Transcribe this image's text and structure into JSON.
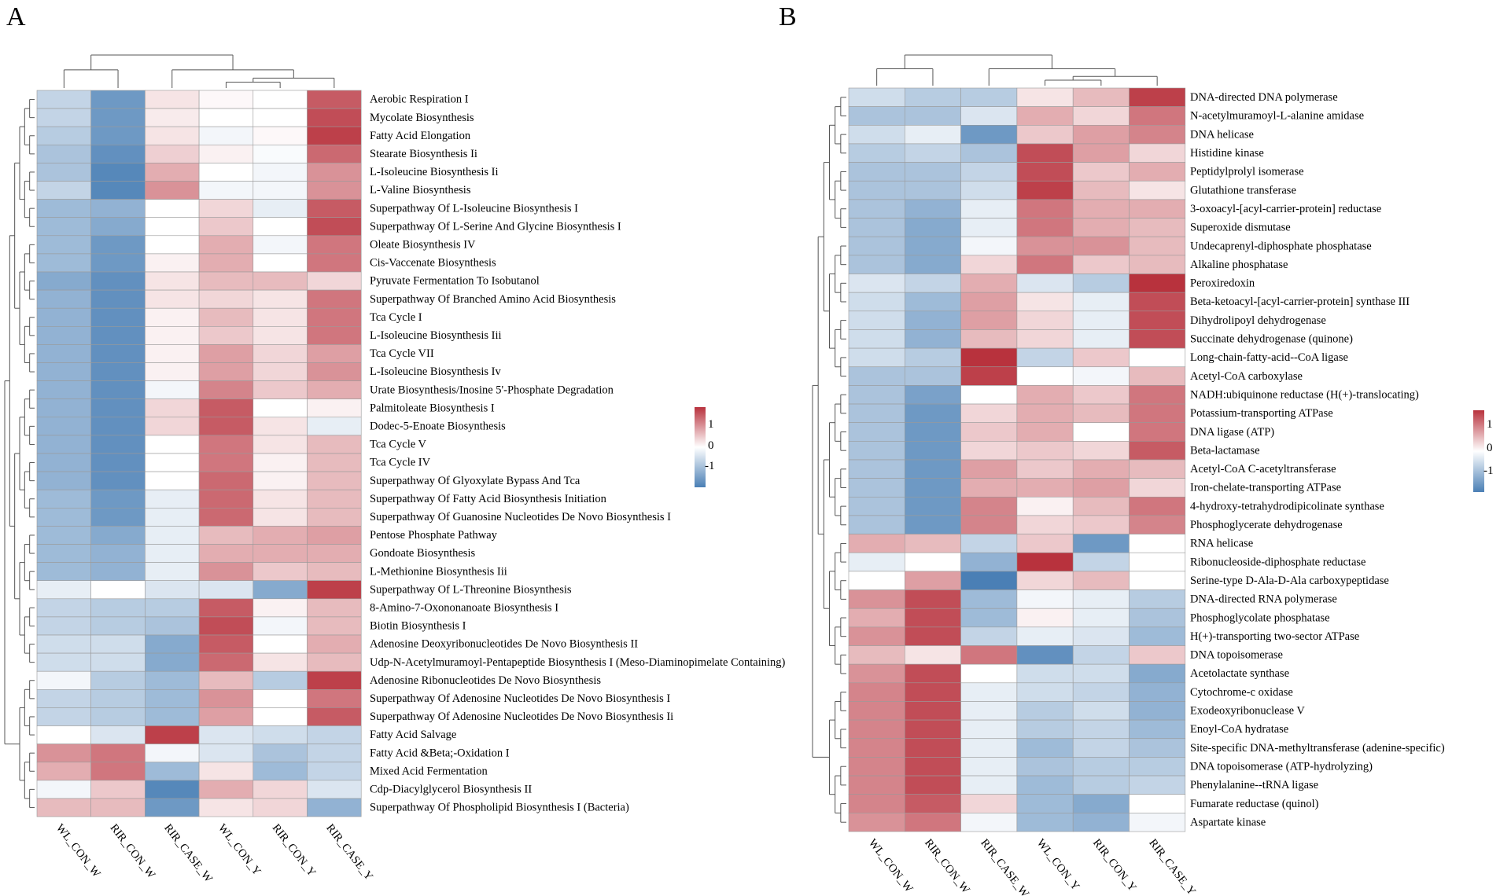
{
  "figure": {
    "panels": [
      "A",
      "B"
    ],
    "colormap": {
      "low": "#4a7fb5",
      "mid": "#ffffff",
      "high": "#b8323d"
    },
    "legend_ticks": [
      "1",
      "0",
      "-1"
    ]
  },
  "chart_data": [
    {
      "type": "heatmap",
      "panel": "A",
      "columns": [
        "WL_CON_W",
        "RIR_CON_W",
        "RIR_CASE_W",
        "WL_CON_Y",
        "RIR_CON_Y",
        "RIR_CASE_Y"
      ],
      "color_range": [
        -1.5,
        1.5
      ],
      "rows": [
        "Aerobic Respiration I",
        "Mycolate Biosynthesis",
        "Fatty Acid Elongation",
        "Stearate Biosynthesis Ii",
        "L-Isoleucine Biosynthesis Ii",
        "L-Valine Biosynthesis",
        "Superpathway Of L-Isoleucine Biosynthesis I",
        "Superpathway Of L-Serine And Glycine Biosynthesis I",
        "Oleate Biosynthesis IV",
        "Cis-Vaccenate Biosynthesis",
        "Pyruvate Fermentation To Isobutanol",
        "Superpathway Of Branched Amino Acid Biosynthesis",
        "Tca Cycle I",
        "L-Isoleucine Biosynthesis Iii",
        "Tca Cycle VII",
        "L-Isoleucine Biosynthesis Iv",
        "Urate Biosynthesis/Inosine 5'-Phosphate Degradation",
        "Palmitoleate Biosynthesis I",
        "Dodec-5-Enoate Biosynthesis",
        "Tca Cycle V",
        "Tca Cycle IV",
        "Superpathway Of Glyoxylate Bypass And Tca",
        "Superpathway Of Fatty Acid Biosynthesis Initiation",
        "Superpathway Of Guanosine Nucleotides De Novo Biosynthesis I",
        "Pentose Phosphate Pathway",
        "Gondoate Biosynthesis",
        "L-Methionine Biosynthesis Iii",
        "Superpathway Of L-Threonine Biosynthesis",
        "8-Amino-7-Oxononanoate Biosynthesis I",
        "Biotin Biosynthesis I",
        "Adenosine Deoxyribonucleotides De Novo Biosynthesis II",
        "Udp-N-Acetylmuramoyl-Pentapeptide Biosynthesis I (Meso-Diaminopimelate Containing)",
        "Adenosine Ribonucleotides De Novo Biosynthesis",
        "Superpathway Of Adenosine Nucleotides De Novo Biosynthesis I",
        "Superpathway Of Adenosine Nucleotides De Novo Biosynthesis Ii",
        "Fatty Acid Salvage",
        "Fatty Acid &Beta;-Oxidation I",
        "Mixed Acid Fermentation",
        "Cdp-Diacylglycerol Biosynthesis II",
        "Superpathway Of Phospholipid Biosynthesis I (Bacteria)"
      ],
      "values": [
        [
          -0.5,
          -1.2,
          0.2,
          0.05,
          0.0,
          1.2
        ],
        [
          -0.5,
          -1.2,
          0.15,
          0.0,
          0.0,
          1.3
        ],
        [
          -0.6,
          -1.2,
          0.2,
          -0.1,
          0.05,
          1.4
        ],
        [
          -0.7,
          -1.3,
          0.35,
          0.1,
          -0.05,
          1.1
        ],
        [
          -0.7,
          -1.4,
          0.6,
          0.0,
          -0.1,
          0.8
        ],
        [
          -0.5,
          -1.4,
          0.8,
          -0.1,
          -0.1,
          0.8
        ],
        [
          -0.8,
          -0.9,
          0.0,
          0.3,
          -0.2,
          1.2
        ],
        [
          -0.8,
          -1.0,
          0.0,
          0.4,
          0.0,
          1.3
        ],
        [
          -0.8,
          -1.2,
          0.0,
          0.6,
          -0.1,
          1.0
        ],
        [
          -0.8,
          -1.2,
          0.1,
          0.6,
          0.0,
          1.0
        ],
        [
          -1.0,
          -1.3,
          0.2,
          0.5,
          0.5,
          0.3
        ],
        [
          -0.9,
          -1.3,
          0.2,
          0.3,
          0.2,
          1.0
        ],
        [
          -0.9,
          -1.3,
          0.1,
          0.5,
          0.2,
          1.0
        ],
        [
          -0.9,
          -1.3,
          0.1,
          0.4,
          0.2,
          1.0
        ],
        [
          -0.9,
          -1.3,
          0.1,
          0.7,
          0.3,
          0.7
        ],
        [
          -0.9,
          -1.3,
          0.1,
          0.7,
          0.3,
          0.8
        ],
        [
          -0.9,
          -1.3,
          -0.1,
          0.9,
          0.4,
          0.6
        ],
        [
          -0.9,
          -1.3,
          0.3,
          1.2,
          0.0,
          0.1
        ],
        [
          -0.9,
          -1.3,
          0.3,
          1.2,
          0.2,
          -0.2
        ],
        [
          -0.9,
          -1.3,
          0.0,
          1.0,
          0.2,
          0.5
        ],
        [
          -0.9,
          -1.3,
          0.0,
          1.0,
          0.1,
          0.5
        ],
        [
          -0.9,
          -1.3,
          0.0,
          1.1,
          0.1,
          0.5
        ],
        [
          -0.8,
          -1.2,
          -0.2,
          1.1,
          0.2,
          0.5
        ],
        [
          -0.8,
          -1.2,
          -0.2,
          1.1,
          0.2,
          0.5
        ],
        [
          -0.8,
          -1.0,
          -0.2,
          0.5,
          0.6,
          0.7
        ],
        [
          -0.8,
          -0.9,
          -0.2,
          0.6,
          0.6,
          0.6
        ],
        [
          -0.8,
          -0.9,
          -0.2,
          0.8,
          0.4,
          0.5
        ],
        [
          -0.2,
          0.0,
          -0.3,
          -0.3,
          -1.0,
          1.4
        ],
        [
          -0.5,
          -0.6,
          -0.6,
          1.2,
          0.1,
          0.5
        ],
        [
          -0.5,
          -0.6,
          -0.7,
          1.3,
          -0.1,
          0.5
        ],
        [
          -0.4,
          -0.4,
          -1.0,
          1.2,
          0.0,
          0.6
        ],
        [
          -0.4,
          -0.4,
          -1.0,
          1.1,
          0.2,
          0.5
        ],
        [
          -0.1,
          -0.6,
          -0.8,
          0.5,
          -0.6,
          1.4
        ],
        [
          -0.5,
          -0.6,
          -0.8,
          0.8,
          0.0,
          1.0
        ],
        [
          -0.5,
          -0.6,
          -0.8,
          0.7,
          0.0,
          1.2
        ],
        [
          0.0,
          -0.3,
          1.4,
          -0.3,
          -0.4,
          -0.5
        ],
        [
          0.8,
          1.0,
          -0.1,
          -0.3,
          -0.7,
          -0.5
        ],
        [
          0.6,
          1.0,
          -0.8,
          0.2,
          -0.8,
          -0.5
        ],
        [
          -0.1,
          0.4,
          -1.4,
          0.6,
          0.3,
          -0.3
        ],
        [
          0.5,
          0.5,
          -1.2,
          0.2,
          0.3,
          -0.9
        ]
      ],
      "col_dendrogram": [
        [
          0,
          1,
          0
        ],
        [
          3,
          4,
          1
        ],
        [
          2,
          6,
          2
        ],
        [
          7,
          5,
          3
        ],
        [
          8,
          9,
          4
        ]
      ],
      "row_dendrogram": [
        [
          0,
          1,
          0.5
        ],
        [
          0,
          1,
          0.5
        ]
      ]
    },
    {
      "type": "heatmap",
      "panel": "B",
      "columns": [
        "WL_CON_W",
        "RIR_CON_W",
        "RIR_CASE_W",
        "WL_CON_Y",
        "RIR_CON_Y",
        "RIR_CASE_Y"
      ],
      "color_range": [
        -1.5,
        1.5
      ],
      "rows": [
        "DNA-directed DNA polymerase",
        "N-acetylmuramoyl-L-alanine amidase",
        "DNA helicase",
        "Histidine kinase",
        "Peptidylprolyl isomerase",
        "Glutathione transferase",
        "3-oxoacyl-[acyl-carrier-protein] reductase",
        "Superoxide dismutase",
        "Undecaprenyl-diphosphate phosphatase",
        "Alkaline phosphatase",
        "Peroxiredoxin",
        "Beta-ketoacyl-[acyl-carrier-protein] synthase III",
        "Dihydrolipoyl dehydrogenase",
        "Succinate dehydrogenase (quinone)",
        "Long-chain-fatty-acid--CoA ligase",
        "Acetyl-CoA carboxylase",
        "NADH:ubiquinone reductase (H(+)-translocating)",
        "Potassium-transporting ATPase",
        "DNA ligase (ATP)",
        "Beta-lactamase",
        "Acetyl-CoA C-acetyltransferase",
        "Iron-chelate-transporting ATPase",
        "4-hydroxy-tetrahydrodipicolinate synthase",
        "Phosphoglycerate dehydrogenase",
        "RNA helicase",
        "Ribonucleoside-diphosphate reductase",
        "Serine-type D-Ala-D-Ala carboxypeptidase",
        "DNA-directed RNA polymerase",
        "Phosphoglycolate phosphatase",
        "H(+)-transporting two-sector ATPase",
        "DNA topoisomerase",
        "Acetolactate synthase",
        "Cytochrome-c oxidase",
        "Exodeoxyribonuclease V",
        "Enoyl-CoA hydratase",
        "Site-specific DNA-methyltransferase (adenine-specific)",
        "DNA topoisomerase (ATP-hydrolyzing)",
        "Phenylalanine--tRNA ligase",
        "Fumarate reductase (quinol)",
        "Aspartate kinase"
      ],
      "values": [
        [
          -0.4,
          -0.6,
          -0.6,
          0.2,
          0.5,
          1.4
        ],
        [
          -0.7,
          -0.7,
          -0.3,
          0.6,
          0.3,
          1.0
        ],
        [
          -0.4,
          -0.2,
          -1.2,
          0.4,
          0.7,
          0.9
        ],
        [
          -0.6,
          -0.5,
          -0.7,
          1.3,
          0.7,
          0.3
        ],
        [
          -0.7,
          -0.7,
          -0.5,
          1.3,
          0.4,
          0.6
        ],
        [
          -0.7,
          -0.7,
          -0.4,
          1.4,
          0.5,
          0.2
        ],
        [
          -0.7,
          -0.9,
          -0.2,
          1.0,
          0.6,
          0.6
        ],
        [
          -0.7,
          -1.0,
          -0.2,
          1.0,
          0.6,
          0.5
        ],
        [
          -0.7,
          -1.0,
          -0.1,
          0.8,
          0.8,
          0.5
        ],
        [
          -0.7,
          -1.0,
          0.3,
          1.0,
          0.4,
          0.5
        ],
        [
          -0.3,
          -0.5,
          0.6,
          -0.3,
          -0.6,
          1.5
        ],
        [
          -0.4,
          -0.8,
          0.7,
          0.2,
          -0.2,
          1.3
        ],
        [
          -0.4,
          -0.9,
          0.7,
          0.3,
          -0.2,
          1.3
        ],
        [
          -0.4,
          -0.9,
          0.5,
          0.3,
          -0.2,
          1.3
        ],
        [
          -0.4,
          -0.6,
          1.5,
          -0.5,
          0.4,
          0.0
        ],
        [
          -0.7,
          -0.7,
          1.4,
          0.0,
          -0.1,
          0.5
        ],
        [
          -0.7,
          -1.1,
          0.0,
          0.6,
          0.4,
          1.0
        ],
        [
          -0.7,
          -1.2,
          0.3,
          0.6,
          0.5,
          1.0
        ],
        [
          -0.7,
          -1.2,
          0.4,
          0.6,
          0.0,
          1.0
        ],
        [
          -0.7,
          -1.2,
          0.3,
          0.4,
          0.3,
          1.2
        ],
        [
          -0.7,
          -1.2,
          0.7,
          0.4,
          0.6,
          0.5
        ],
        [
          -0.7,
          -1.2,
          0.6,
          0.6,
          0.7,
          0.3
        ],
        [
          -0.7,
          -1.2,
          0.9,
          0.1,
          0.5,
          1.0
        ],
        [
          -0.7,
          -1.2,
          0.9,
          0.3,
          0.4,
          0.9
        ],
        [
          0.6,
          0.5,
          -0.5,
          0.4,
          -1.2,
          0.0
        ],
        [
          -0.2,
          0.0,
          -0.9,
          1.5,
          -0.5,
          0.0
        ],
        [
          0.0,
          0.7,
          -1.5,
          0.3,
          0.5,
          0.0
        ],
        [
          0.8,
          1.3,
          -0.8,
          -0.1,
          -0.2,
          -0.6
        ],
        [
          0.6,
          1.3,
          -0.8,
          0.1,
          -0.2,
          -0.7
        ],
        [
          0.8,
          1.3,
          -0.5,
          -0.2,
          -0.3,
          -0.8
        ],
        [
          0.5,
          0.2,
          1.0,
          -1.3,
          -0.5,
          0.4
        ],
        [
          0.8,
          1.3,
          0.0,
          -0.4,
          -0.4,
          -1.0
        ],
        [
          0.9,
          1.3,
          -0.2,
          -0.4,
          -0.5,
          -0.9
        ],
        [
          0.9,
          1.3,
          -0.2,
          -0.6,
          -0.4,
          -0.9
        ],
        [
          0.9,
          1.3,
          -0.2,
          -0.6,
          -0.5,
          -0.8
        ],
        [
          0.9,
          1.3,
          -0.2,
          -0.8,
          -0.5,
          -0.7
        ],
        [
          0.9,
          1.3,
          -0.2,
          -0.7,
          -0.6,
          -0.6
        ],
        [
          0.9,
          1.3,
          -0.2,
          -0.8,
          -0.6,
          -0.5
        ],
        [
          0.9,
          1.2,
          0.3,
          -0.8,
          -1.0,
          0.0
        ],
        [
          0.8,
          1.0,
          -0.1,
          -0.8,
          -0.9,
          -0.1
        ]
      ]
    }
  ]
}
